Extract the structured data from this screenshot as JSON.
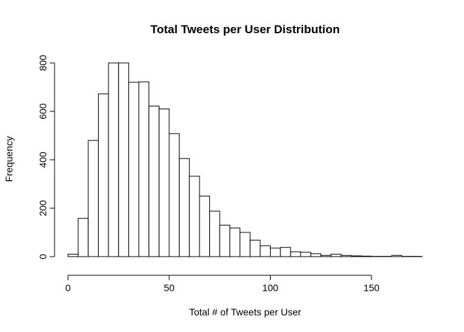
{
  "chart_data": {
    "type": "bar",
    "title": "Total Tweets per User Distribution",
    "xlabel": "Total # of Tweets per User",
    "ylabel": "Frequency",
    "bin_width": 5,
    "bin_starts": [
      0,
      5,
      10,
      15,
      20,
      25,
      30,
      35,
      40,
      45,
      50,
      55,
      60,
      65,
      70,
      75,
      80,
      85,
      90,
      95,
      100,
      105,
      110,
      115,
      120,
      125,
      130,
      135,
      140,
      145,
      150,
      155,
      160,
      165,
      170
    ],
    "values": [
      10,
      158,
      480,
      672,
      800,
      800,
      720,
      722,
      622,
      610,
      508,
      405,
      332,
      250,
      188,
      130,
      118,
      100,
      68,
      45,
      35,
      38,
      20,
      18,
      12,
      5,
      10,
      5,
      3,
      2,
      1,
      1,
      5,
      1,
      1
    ],
    "xlim": [
      0,
      175
    ],
    "ylim": [
      0,
      800
    ],
    "x_ticks": [
      "0",
      "50",
      "100",
      "150"
    ],
    "y_ticks": [
      "0",
      "200",
      "400",
      "600",
      "800"
    ],
    "bar_fill": "#ffffff",
    "bar_stroke": "#000000",
    "grid": false
  }
}
